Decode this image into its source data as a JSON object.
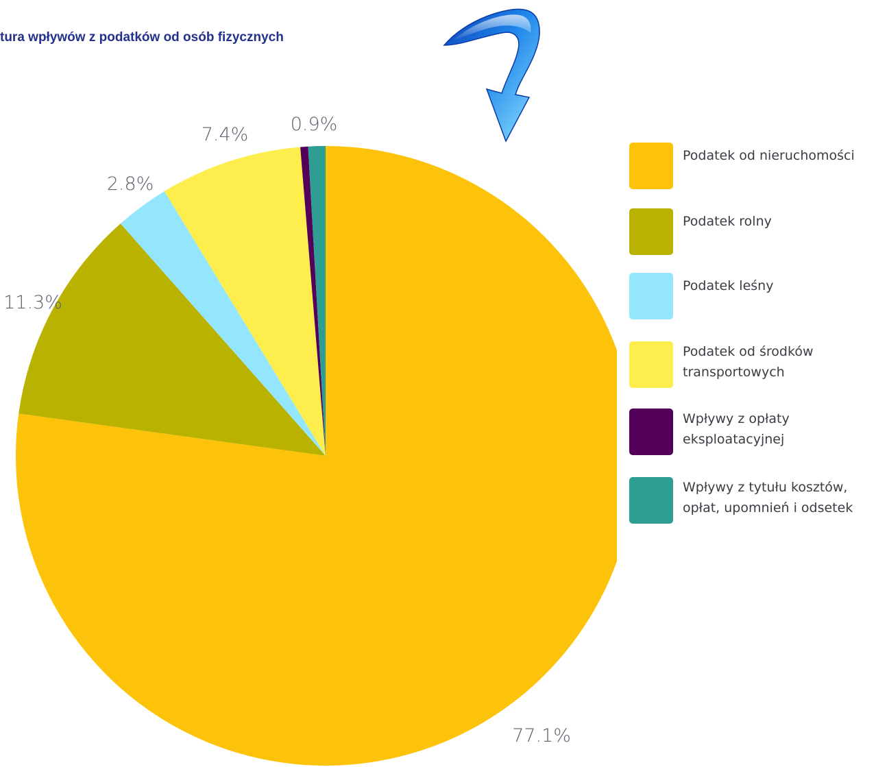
{
  "title": "tura wpływów z podatków od osób fizycznych",
  "chart_data": {
    "type": "pie",
    "title": "tura wpływów z podatków od osób fizycznych",
    "slices": [
      {
        "name": "Podatek od nieruchomości",
        "value": 77.1,
        "label": "77.1%",
        "color": "#fdc30a"
      },
      {
        "name": "Podatek rolny",
        "value": 11.3,
        "label": "11.3%",
        "color": "#b9b200"
      },
      {
        "name": "Podatek leśny",
        "value": 2.8,
        "label": "2.8%",
        "color": "#94e6fd"
      },
      {
        "name": "Podatek od środków\ntransportowych",
        "value": 7.4,
        "label": "7.4%",
        "color": "#fdee4d"
      },
      {
        "name": "Wpływy z opłaty\neksploatacyjnej",
        "value": 0.4,
        "label": "",
        "color": "#52005a"
      },
      {
        "name": "Wpływy z tytułu kosztów,\nopłat, upomnień i odsetek",
        "value": 0.9,
        "label": "0.9%",
        "color": "#2d9e91"
      }
    ],
    "legend_position": "right",
    "start_angle": "top (12 o'clock), clockwise"
  },
  "legend": {
    "items": [
      {
        "label": "Podatek od nieruchomości",
        "color": "#fdc30a"
      },
      {
        "label": "Podatek rolny",
        "color": "#b9b200"
      },
      {
        "label": "Podatek leśny",
        "color": "#94e6fd"
      },
      {
        "label": "Podatek od środków\ntransportowych",
        "color": "#fdee4d"
      },
      {
        "label": "Wpływy z opłaty\neksploatacyjnej",
        "color": "#52005a"
      },
      {
        "label": "Wpływy z tytułu kosztów,\nopłat, upomnień i odsetek",
        "color": "#2d9e91"
      }
    ]
  },
  "decoration": {
    "arrow_icon": "curved-arrow-icon",
    "arrow_color": "#1e7fe6"
  }
}
